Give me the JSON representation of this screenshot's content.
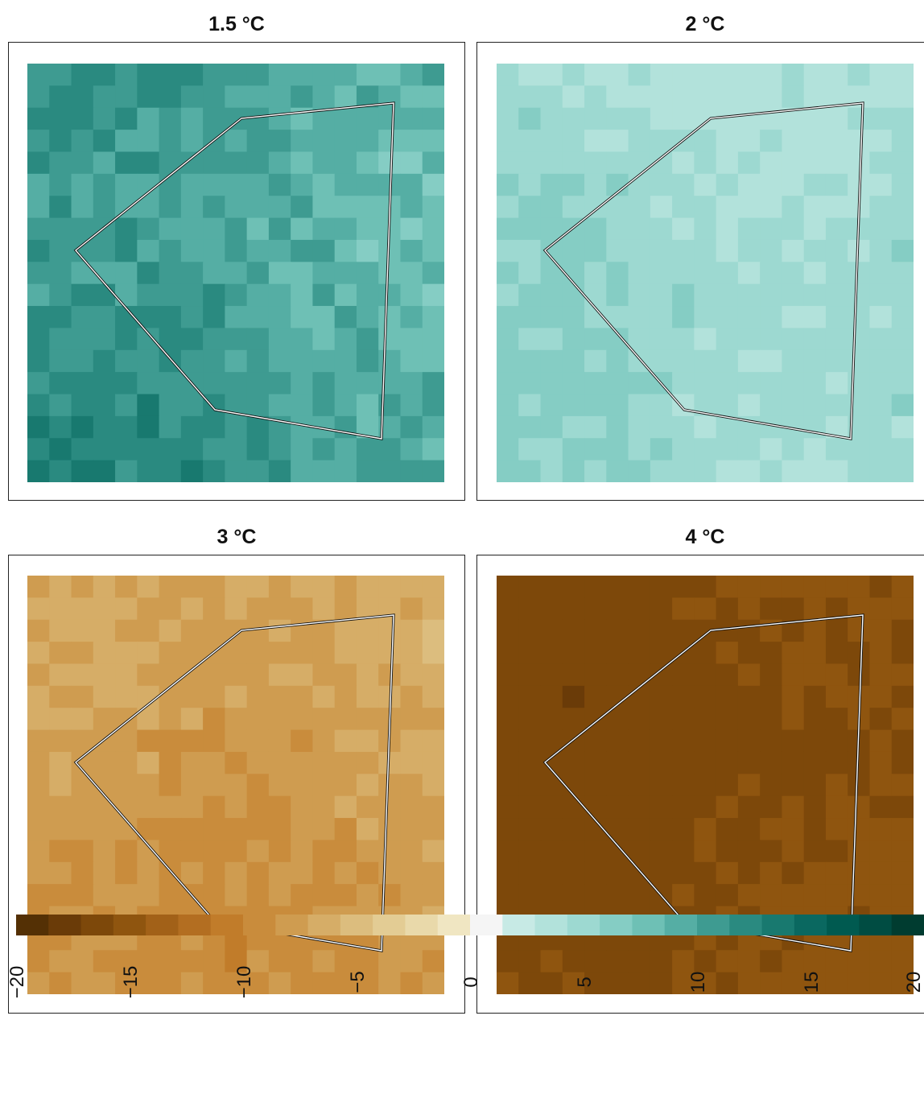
{
  "panels": [
    {
      "title": "1.5 °C",
      "mean": 10.6,
      "amplitude": 3.2,
      "seed": 1
    },
    {
      "title": "2 °C",
      "mean": 4.8,
      "amplitude": 2.0,
      "seed": 2
    },
    {
      "title": "3 °C",
      "mean": -7.6,
      "amplitude": 2.2,
      "seed": 3
    },
    {
      "title": "4 °C",
      "mean": -15.6,
      "amplitude": 1.3,
      "seed": 4
    }
  ],
  "legend": {
    "min": -20,
    "max": 20,
    "ticks": [
      "−20",
      "−15",
      "−10",
      "−5",
      "0",
      "5",
      "10",
      "15",
      "20"
    ],
    "colors": [
      "#543005",
      "#6a3b08",
      "#7d480a",
      "#8f550f",
      "#a26118",
      "#b36e21",
      "#c17c2a",
      "#c98c3c",
      "#cf9c50",
      "#d6ad67",
      "#dcbd7e",
      "#e3cc94",
      "#e9d9aa",
      "#f0e6c2",
      "#f5f5f5",
      "#c7eae5",
      "#b2e2db",
      "#9dd9d1",
      "#85cdc4",
      "#6ec0b5",
      "#55aea4",
      "#3e9b91",
      "#2a8a80",
      "#18796f",
      "#0a6860",
      "#005a50",
      "#004c42",
      "#003c30"
    ]
  },
  "region_outline": [
    [
      0.16,
      0.9
    ],
    [
      0.52,
      0.55
    ],
    [
      0.88,
      0.1
    ],
    [
      0.85,
      0.9
    ],
    [
      0.45,
      0.15
    ]
  ]
}
